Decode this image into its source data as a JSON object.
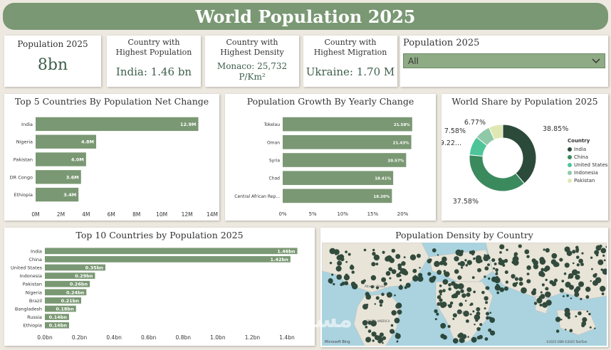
{
  "title": "World Population 2025",
  "kpis": [
    {
      "label": "Population 2025",
      "value": "8bn"
    },
    {
      "label": "Country with Highest Population",
      "value": "India: 1.46 bn"
    },
    {
      "label": "Country with Highest Density",
      "value": "Monaco: 25,732 P/Km²"
    },
    {
      "label": "Country with Highest Migration",
      "value": "Ukraine: 1.70 M"
    }
  ],
  "slicer": {
    "label": "Population 2025",
    "value": "All"
  },
  "colors": {
    "title_bg": "#7a9873",
    "bar": "#7a9873",
    "accent": "#3e5f4c"
  },
  "chart_data": [
    {
      "type": "bar",
      "title": "Top 5 Countries By Population Net Change",
      "categories": [
        "India",
        "Nigeria",
        "Pakistan",
        "DR Congo",
        "Ethiopia"
      ],
      "values": [
        12.9,
        4.8,
        4.0,
        3.6,
        3.4
      ],
      "data_labels": [
        "12.9M",
        "4.8M",
        "4.0M",
        "3.6M",
        "3.4M"
      ],
      "xticks": [
        "0M",
        "2M",
        "4M",
        "6M",
        "8M",
        "10M",
        "12M",
        "14M"
      ],
      "xlim": [
        0,
        14
      ]
    },
    {
      "type": "bar",
      "title": "Population Growth By Yearly Change",
      "categories": [
        "Tokelau",
        "Oman",
        "Syria",
        "Chad",
        "Central African Rep..."
      ],
      "values": [
        21.58,
        21.43,
        20.57,
        18.41,
        18.2
      ],
      "data_labels": [
        "21.58%",
        "21.43%",
        "20.57%",
        "18.41%",
        "18.20%"
      ],
      "xticks": [
        "0%",
        "5%",
        "10%",
        "15%",
        "20%"
      ],
      "xlim": [
        0,
        21.6
      ]
    },
    {
      "type": "pie",
      "title": "World Share by Population 2025",
      "categories": [
        "India",
        "China",
        "United States",
        "Indonesia",
        "Pakistan"
      ],
      "values": [
        38.85,
        37.58,
        9.22,
        7.58,
        6.77
      ],
      "data_labels": [
        "38.85%",
        "37.58%",
        "9.22...",
        "7.58%",
        "6.77%"
      ],
      "legend_title": "Country",
      "colors": [
        "#2c4a3a",
        "#3b8a5e",
        "#4ec49a",
        "#8fc9a8",
        "#dfe8b3"
      ]
    },
    {
      "type": "bar",
      "title": "Top 10 Countries by Population 2025",
      "categories": [
        "India",
        "China",
        "United States",
        "Indonesia",
        "Pakistan",
        "Nigeria",
        "Brazil",
        "Bangladesh",
        "Russia",
        "Ethiopia"
      ],
      "values": [
        1.46,
        1.42,
        0.35,
        0.29,
        0.26,
        0.24,
        0.21,
        0.18,
        0.14,
        0.14
      ],
      "data_labels": [
        "1.46bn",
        "1.42bn",
        "0.35bn",
        "0.29bn",
        "0.26bn",
        "0.24bn",
        "0.21bn",
        "0.18bn",
        "0.14bn",
        "0.14bn"
      ],
      "xticks": [
        "0.0bn",
        "0.2bn",
        "0.4bn",
        "0.6bn",
        "0.8bn",
        "1.0bn",
        "1.2bn",
        "1.4bn"
      ],
      "xlim": [
        0,
        1.4
      ]
    }
  ],
  "map": {
    "title": "Population Density by Country",
    "labels": [
      "Atlantic Ocean",
      "SOUTH AMERICA",
      "AFRICA"
    ],
    "attribution": "©2025 OSM ©2025 TomTom",
    "ms_label": "Microsoft Bing"
  },
  "watermark": "مستقل"
}
